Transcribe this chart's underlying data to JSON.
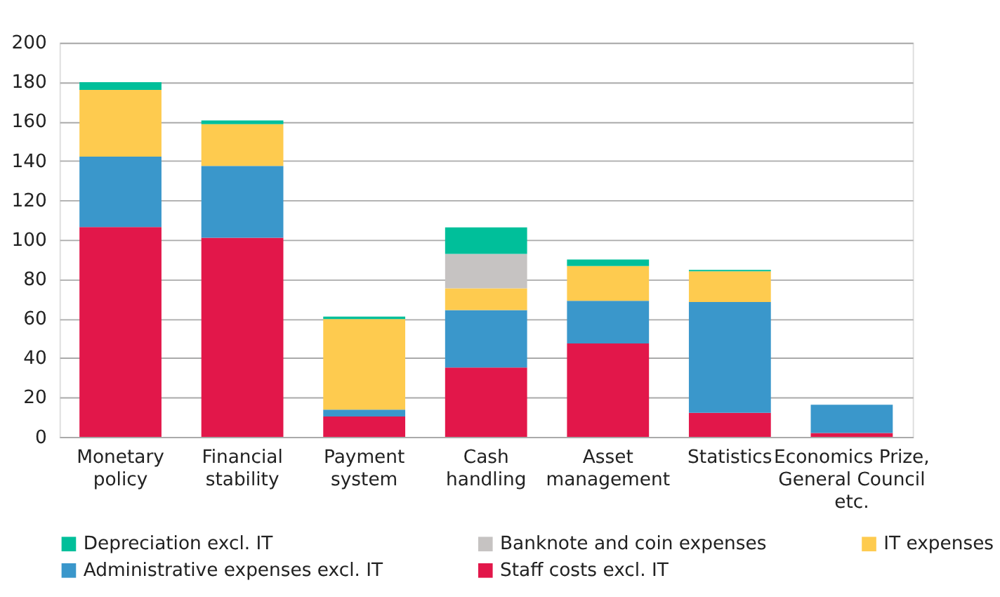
{
  "chart_data": {
    "type": "bar",
    "stacked": true,
    "categories": [
      "Monetary\npolicy",
      "Financial\nstability",
      "Payment\nsystem",
      "Cash\nhandling",
      "Asset\nmanagement",
      "Statistics",
      "Economics Prize,\nGeneral Council\netc."
    ],
    "series": [
      {
        "name": "Staff costs excl. IT",
        "color": "#e2174a",
        "values": [
          106.5,
          101,
          10.4,
          35.2,
          47.4,
          12.2,
          2
        ]
      },
      {
        "name": "Administrative expenses excl. IT",
        "color": "#3a97cb",
        "values": [
          35.7,
          36.5,
          3.4,
          29.1,
          21.7,
          56.2,
          14.3
        ]
      },
      {
        "name": "IT expenses",
        "color": "#fecb4f",
        "values": [
          33.8,
          21.2,
          46,
          11.1,
          17.6,
          15.6,
          null
        ]
      },
      {
        "name": "Banknote and coin expenses",
        "color": "#c6c3c2",
        "values": [
          null,
          null,
          null,
          17.4,
          null,
          null,
          null
        ]
      },
      {
        "name": "Depreciation excl. IT",
        "color": "#00bf9a",
        "values": [
          4,
          1.8,
          1.2,
          13.5,
          3.3,
          0.7,
          null
        ]
      }
    ],
    "ylim": [
      0,
      200
    ],
    "yticks": [
      0,
      20,
      40,
      60,
      80,
      100,
      120,
      140,
      160,
      180,
      200
    ],
    "grid": "y",
    "legend": "bottom"
  }
}
